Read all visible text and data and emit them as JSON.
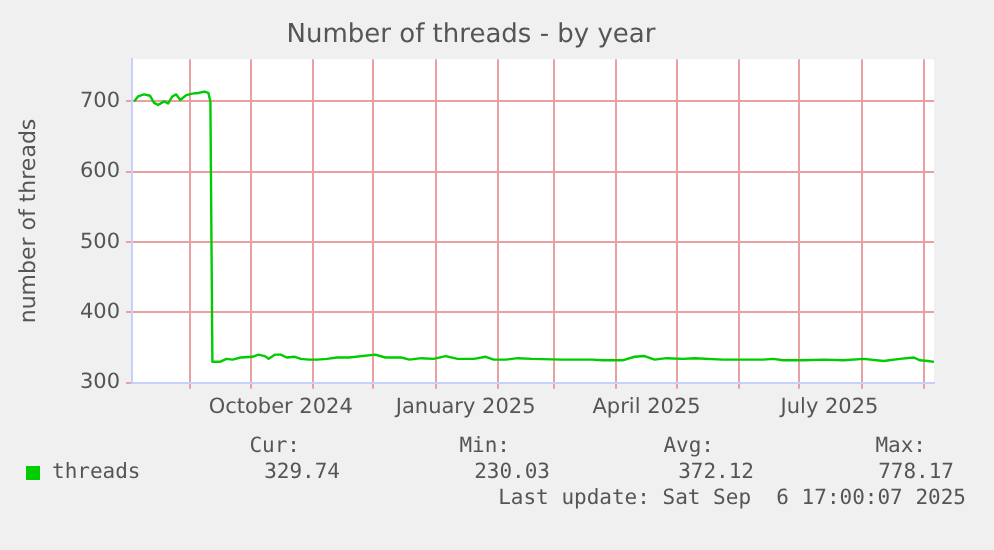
{
  "chart_data": {
    "type": "line",
    "title": "Number of threads - by year",
    "ylabel": "number of threads",
    "x": [
      "2024-08-04",
      "2024-08-06",
      "2024-08-09",
      "2024-08-12",
      "2024-08-14",
      "2024-08-16",
      "2024-08-19",
      "2024-08-21",
      "2024-08-23",
      "2024-08-25",
      "2024-08-27",
      "2024-08-30",
      "2024-09-02",
      "2024-09-05",
      "2024-09-08",
      "2024-09-10",
      "2024-09-11",
      "2024-09-12",
      "2024-09-16",
      "2024-09-19",
      "2024-09-22",
      "2024-09-26",
      "2024-10-02",
      "2024-10-05",
      "2024-10-08",
      "2024-10-10",
      "2024-10-13",
      "2024-10-16",
      "2024-10-19",
      "2024-10-23",
      "2024-10-26",
      "2024-10-30",
      "2024-11-03",
      "2024-11-08",
      "2024-11-13",
      "2024-11-19",
      "2024-12-02",
      "2024-12-07",
      "2024-12-15",
      "2024-12-19",
      "2024-12-25",
      "2024-12-31",
      "2025-01-06",
      "2025-01-12",
      "2025-01-20",
      "2025-01-26",
      "2025-01-30",
      "2025-02-05",
      "2025-02-11",
      "2025-02-18",
      "2025-03-05",
      "2025-03-20",
      "2025-03-25",
      "2025-04-04",
      "2025-04-10",
      "2025-04-15",
      "2025-04-20",
      "2025-04-26",
      "2025-05-04",
      "2025-05-10",
      "2025-05-24",
      "2025-06-13",
      "2025-06-18",
      "2025-06-23",
      "2025-07-03",
      "2025-07-13",
      "2025-07-23",
      "2025-08-02",
      "2025-08-12",
      "2025-08-20",
      "2025-08-27",
      "2025-08-30",
      "2025-09-03",
      "2025-09-06"
    ],
    "series": [
      {
        "name": "threads",
        "color": "#00cc00",
        "values": [
          700,
          707,
          710,
          708,
          698,
          695,
          700,
          697,
          707,
          710,
          702,
          709,
          711,
          712,
          714,
          712,
          700,
          330,
          330,
          334,
          333,
          336,
          337,
          340,
          338,
          334,
          340,
          340,
          336,
          337,
          334,
          333,
          333,
          334,
          336,
          336,
          340,
          336,
          336,
          333,
          335,
          334,
          338,
          334,
          334,
          337,
          333,
          333,
          335,
          334,
          333,
          333,
          332,
          332,
          337,
          338,
          333,
          335,
          334,
          335,
          333,
          333,
          334,
          332,
          332,
          333,
          332,
          334,
          331,
          334,
          336,
          332,
          331,
          329.74
        ]
      }
    ],
    "xlim": [
      "2024-08-03",
      "2025-09-06"
    ],
    "xticks": [
      {
        "value": "2024-09-01",
        "label": null
      },
      {
        "value": "2024-10-01",
        "label": null
      },
      {
        "value": "2024-10-16",
        "label": "October 2024"
      },
      {
        "value": "2024-11-01",
        "label": null
      },
      {
        "value": "2024-12-01",
        "label": null
      },
      {
        "value": "2025-01-01",
        "label": null
      },
      {
        "value": "2025-01-16",
        "label": "January 2025"
      },
      {
        "value": "2025-02-01",
        "label": null
      },
      {
        "value": "2025-03-01",
        "label": null
      },
      {
        "value": "2025-04-01",
        "label": null
      },
      {
        "value": "2025-04-16",
        "label": "April 2025"
      },
      {
        "value": "2025-05-01",
        "label": null
      },
      {
        "value": "2025-06-01",
        "label": null
      },
      {
        "value": "2025-07-01",
        "label": null
      },
      {
        "value": "2025-07-16",
        "label": "July 2025"
      },
      {
        "value": "2025-08-01",
        "label": null
      },
      {
        "value": "2025-09-01",
        "label": null
      }
    ],
    "ylim": [
      300,
      760
    ],
    "yticks": [
      300,
      400,
      500,
      600,
      700
    ],
    "grid": true,
    "legend": "bottom",
    "marker": "none",
    "line_style": "solid",
    "annotations": [
      "Cur:",
      "Min:",
      "Avg:",
      "Max:",
      "329.74",
      "230.03",
      "372.12",
      "778.17",
      "Last update: Sat Sep  6 17:00:07 2025"
    ]
  }
}
